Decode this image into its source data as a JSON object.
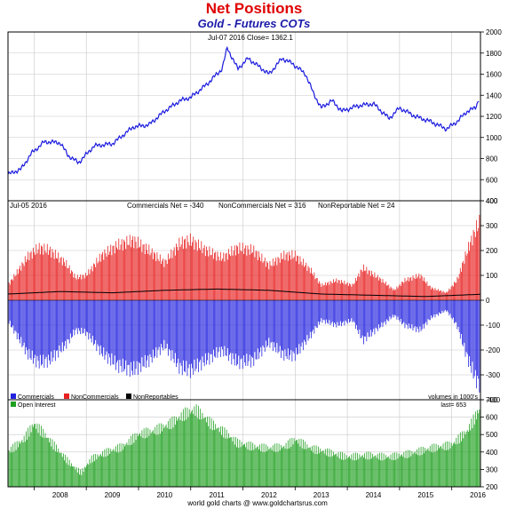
{
  "title": "Net Positions",
  "subtitle": "Gold - Futures COTs",
  "footer": "world gold charts @ www.goldchartsrus.com",
  "colors": {
    "price_line": "#1a1adf",
    "commercials": "#2323e0",
    "noncommercials": "#e82020",
    "nonreportables": "#000000",
    "open_interest": "#20a020",
    "grid": "#c8c8c8"
  },
  "chart_data": [
    {
      "type": "line",
      "header": "Jul-07 2016   Close= 1362.1",
      "ylim": [
        400,
        2000
      ],
      "yticks": [
        400,
        600,
        800,
        1000,
        1200,
        1400,
        1600,
        1800,
        2000
      ],
      "xlim": [
        2007.5,
        2016.55
      ],
      "series": [
        {
          "x": [
            2007.5,
            2007.75,
            2007.95,
            2008.2,
            2008.5,
            2008.65,
            2008.85,
            2009.15,
            2009.5,
            2009.9,
            2010.2,
            2010.5,
            2010.8,
            2011.0,
            2011.3,
            2011.6,
            2011.7,
            2011.9,
            2012.1,
            2012.5,
            2012.75,
            2012.95,
            2013.2,
            2013.35,
            2013.5,
            2013.7,
            2013.9,
            2014.2,
            2014.5,
            2014.8,
            2015.0,
            2015.3,
            2015.6,
            2015.9,
            2016.1,
            2016.3,
            2016.45,
            2016.52
          ],
          "y": [
            650,
            700,
            850,
            960,
            950,
            830,
            760,
            920,
            940,
            1100,
            1120,
            1250,
            1350,
            1380,
            1500,
            1650,
            1850,
            1650,
            1750,
            1600,
            1750,
            1700,
            1600,
            1420,
            1280,
            1350,
            1250,
            1300,
            1320,
            1180,
            1280,
            1200,
            1150,
            1080,
            1150,
            1250,
            1280,
            1362
          ]
        }
      ]
    },
    {
      "type": "bar",
      "header": "Jul-05 2016",
      "ylim": [
        -400,
        400
      ],
      "yticks": [
        -400,
        -300,
        -200,
        -100,
        0,
        100,
        200,
        300,
        400
      ],
      "xlim": [
        2007.5,
        2016.55
      ],
      "stats": [
        {
          "name": "Commercials",
          "value": "Commercials Net = -340"
        },
        {
          "name": "NonCommercials",
          "value": "NonCommercials Net = 316"
        },
        {
          "name": "NonReportables",
          "value": "NonReportable Net = 24"
        }
      ],
      "legend": [
        "Commercials",
        "NonCommercials",
        "NonReportables"
      ],
      "units_note": "volumes in 1000's",
      "series": [
        {
          "name": "NonCommercials",
          "x": [
            2007.5,
            2007.7,
            2007.9,
            2008.1,
            2008.3,
            2008.6,
            2008.8,
            2009.0,
            2009.3,
            2009.6,
            2009.9,
            2010.2,
            2010.5,
            2010.8,
            2011.0,
            2011.3,
            2011.6,
            2011.9,
            2012.2,
            2012.5,
            2012.8,
            2013.0,
            2013.3,
            2013.5,
            2013.8,
            2014.1,
            2014.3,
            2014.6,
            2014.9,
            2015.1,
            2015.4,
            2015.6,
            2015.9,
            2016.1,
            2016.3,
            2016.45,
            2016.55
          ],
          "y": [
            60,
            120,
            180,
            210,
            200,
            150,
            90,
            100,
            180,
            220,
            240,
            200,
            150,
            230,
            240,
            200,
            170,
            210,
            200,
            140,
            180,
            180,
            120,
            60,
            80,
            60,
            130,
            90,
            40,
            80,
            100,
            50,
            30,
            80,
            200,
            280,
            316
          ]
        },
        {
          "name": "Commercials",
          "x": [
            2007.5,
            2007.7,
            2007.9,
            2008.1,
            2008.3,
            2008.6,
            2008.8,
            2009.0,
            2009.3,
            2009.6,
            2009.9,
            2010.2,
            2010.5,
            2010.8,
            2011.0,
            2011.3,
            2011.6,
            2011.9,
            2012.2,
            2012.5,
            2012.8,
            2013.0,
            2013.3,
            2013.5,
            2013.8,
            2014.1,
            2014.3,
            2014.6,
            2014.9,
            2015.1,
            2015.4,
            2015.6,
            2015.9,
            2016.1,
            2016.3,
            2016.45,
            2016.55
          ],
          "y": [
            -80,
            -150,
            -220,
            -250,
            -240,
            -180,
            -120,
            -130,
            -210,
            -260,
            -280,
            -240,
            -180,
            -270,
            -280,
            -240,
            -200,
            -250,
            -240,
            -170,
            -220,
            -220,
            -140,
            -80,
            -100,
            -80,
            -160,
            -110,
            -60,
            -100,
            -120,
            -70,
            -40,
            -100,
            -230,
            -310,
            -340
          ]
        },
        {
          "name": "NonReportables",
          "x": [
            2007.5,
            2008.5,
            2009.5,
            2010.5,
            2011.5,
            2012.5,
            2013.5,
            2014.5,
            2015.5,
            2016.55
          ],
          "y": [
            25,
            35,
            30,
            40,
            45,
            40,
            25,
            20,
            15,
            24
          ]
        }
      ]
    },
    {
      "type": "bar",
      "legend": [
        "Open Interest"
      ],
      "oi_note": "last= 653",
      "ylim": [
        200,
        700
      ],
      "yticks": [
        200,
        300,
        400,
        500,
        600,
        700
      ],
      "xlim": [
        2007.5,
        2016.55
      ],
      "xticks": [
        "2008",
        "2009",
        "2010",
        "2011",
        "2012",
        "2013",
        "2014",
        "2015",
        "2016"
      ],
      "series": [
        {
          "name": "Open Interest",
          "x": [
            2007.5,
            2007.8,
            2008.0,
            2008.2,
            2008.4,
            2008.7,
            2008.9,
            2009.1,
            2009.4,
            2009.7,
            2010.0,
            2010.3,
            2010.6,
            2010.9,
            2011.1,
            2011.4,
            2011.7,
            2011.9,
            2012.2,
            2012.5,
            2012.8,
            2013.0,
            2013.3,
            2013.6,
            2014.0,
            2014.4,
            2014.8,
            2015.2,
            2015.6,
            2016.0,
            2016.3,
            2016.45,
            2016.55
          ],
          "y": [
            400,
            470,
            560,
            500,
            430,
            330,
            280,
            360,
            400,
            430,
            500,
            520,
            560,
            620,
            640,
            560,
            500,
            450,
            430,
            420,
            430,
            470,
            420,
            400,
            370,
            380,
            370,
            390,
            420,
            440,
            520,
            600,
            653
          ]
        }
      ]
    }
  ]
}
